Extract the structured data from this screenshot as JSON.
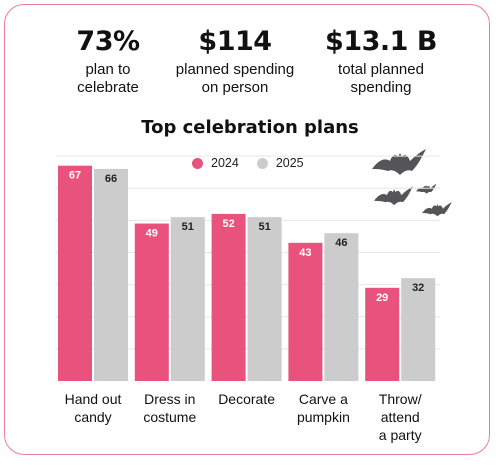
{
  "stats": [
    {
      "value": "73%",
      "desc_line1": "plan to",
      "desc_line2": "celebrate"
    },
    {
      "value": "$114",
      "desc_line1": "planned spending",
      "desc_line2": "on person"
    },
    {
      "value": "$13.1 B",
      "desc_line1": "total planned",
      "desc_line2": "spending"
    }
  ],
  "colors": {
    "accent": "#e8527d",
    "neutral": "#cccccc",
    "border": "#f07aa5",
    "bat": "#555558"
  },
  "decor": {
    "bat_icon": "bat-icon"
  },
  "chart_data": {
    "type": "bar",
    "title": "Top celebration plans",
    "xlabel": "",
    "ylabel": "",
    "ylim": [
      0,
      75
    ],
    "grid": true,
    "legend_position": "top-center",
    "categories": [
      [
        "Hand out",
        "candy"
      ],
      [
        "Dress in",
        "costume"
      ],
      [
        "Decorate"
      ],
      [
        "Carve a",
        "pumpkin"
      ],
      [
        "Throw/",
        "attend",
        "a party"
      ]
    ],
    "series": [
      {
        "name": "2024",
        "color": "#e8527d",
        "values": [
          67,
          49,
          52,
          43,
          29
        ]
      },
      {
        "name": "2025",
        "color": "#cccccc",
        "values": [
          66,
          51,
          51,
          46,
          32
        ]
      }
    ]
  }
}
